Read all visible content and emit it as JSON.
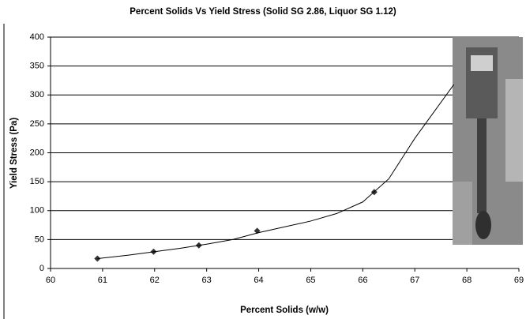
{
  "chart_data": {
    "type": "scatter",
    "title": "Percent Solids Vs Yield Stress (Solid SG 2.86, Liquor SG 1.12)",
    "x_label": "Percent Solids (w/w)",
    "y_label": "Yield Stress (Pa)",
    "series": [
      {
        "x": [
          60.9,
          61.98,
          62.85,
          63.97,
          66.22
        ],
        "values": [
          17,
          29,
          40,
          65,
          132
        ],
        "color": "#333333",
        "marker": "diamond"
      },
      {
        "x": [
          60.9,
          61.5,
          62,
          62.5,
          63,
          63.5,
          64,
          64.5,
          65,
          65.5,
          66,
          66.5,
          67,
          67.75
        ],
        "values": [
          17,
          23,
          29,
          35,
          42,
          50,
          62,
          72,
          82,
          95,
          115,
          155,
          225,
          318
        ],
        "color": "#000000",
        "line": true
      }
    ],
    "xlim": [
      60,
      69
    ],
    "xticks": [
      60,
      61,
      62,
      63,
      64,
      65,
      66,
      67,
      68,
      69
    ],
    "ylim": [
      0,
      400
    ],
    "yticks": [
      0,
      50,
      100,
      150,
      200,
      250,
      300,
      350,
      400
    ],
    "grid": true
  }
}
